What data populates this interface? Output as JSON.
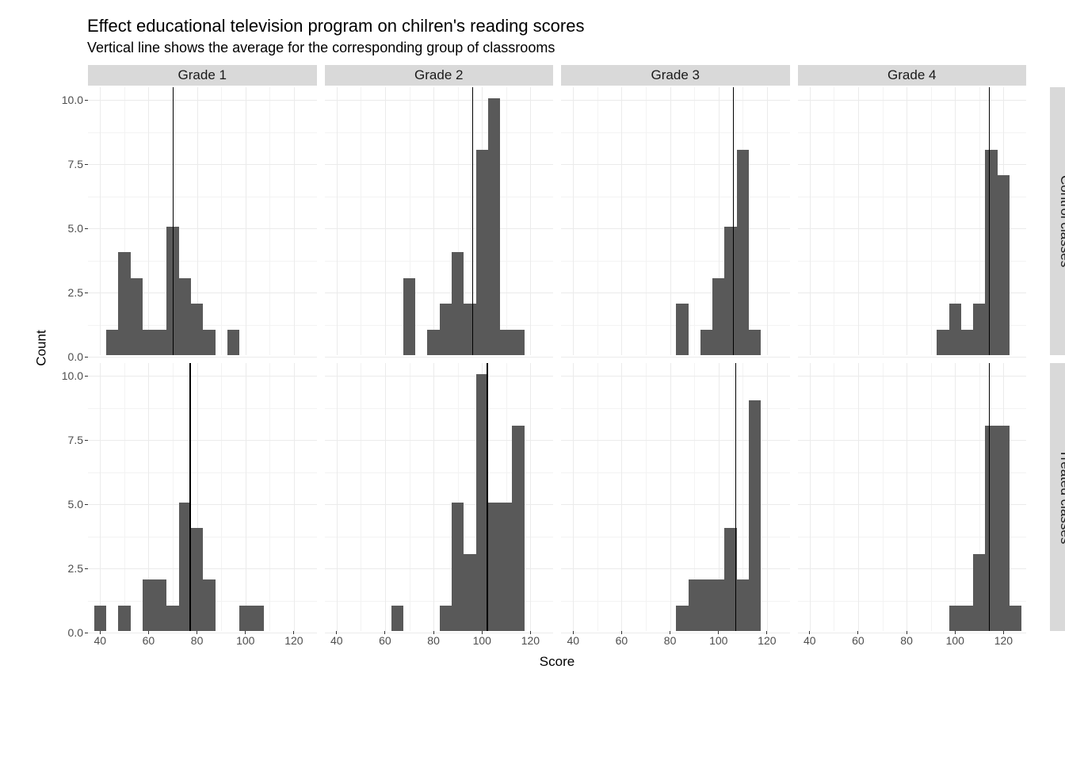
{
  "title": "Effect educational television program on chilren's reading scores",
  "subtitle": "Vertical line shows the average for the corresponding group of classrooms",
  "axis": {
    "x_label": "Score",
    "y_label": "Count",
    "xlim": [
      35,
      130
    ],
    "ylim": [
      0,
      10.5
    ],
    "x_ticks": [
      40,
      60,
      80,
      100,
      120
    ],
    "y_ticks": [
      0.0,
      2.5,
      5.0,
      7.5,
      10.0
    ],
    "y_tick_labels": [
      "0.0",
      "2.5",
      "5.0",
      "7.5",
      "10.0"
    ],
    "x_minor_step": 10,
    "y_minor_step": 1.25,
    "grid_major_color": "#ebebeb",
    "grid_minor_color": "#f3f3f3"
  },
  "layout": {
    "panel_gap": 8,
    "strip_height": 28,
    "strip_width": 28,
    "left_margin": 90,
    "cols": [
      "Grade 1",
      "Grade 2",
      "Grade 3",
      "Grade 4"
    ],
    "rows": [
      "Control classes",
      "Treated classes"
    ],
    "panel_bg": "#ffffff",
    "strip_bg": "#d9d9d9",
    "bar_color": "#595959",
    "vline_color": "#000000",
    "bin_width": 5
  },
  "panels": [
    {
      "col": 0,
      "row": 0,
      "vline": 70,
      "bars": [
        [
          45,
          1
        ],
        [
          50,
          4
        ],
        [
          55,
          3
        ],
        [
          60,
          1
        ],
        [
          65,
          1
        ],
        [
          70,
          5
        ],
        [
          75,
          3
        ],
        [
          80,
          2
        ],
        [
          85,
          1
        ],
        [
          95,
          1
        ]
      ]
    },
    {
      "col": 1,
      "row": 0,
      "vline": 96,
      "bars": [
        [
          70,
          3
        ],
        [
          80,
          1
        ],
        [
          85,
          2
        ],
        [
          90,
          4
        ],
        [
          95,
          2
        ],
        [
          100,
          8
        ],
        [
          105,
          10
        ],
        [
          110,
          1
        ],
        [
          115,
          1
        ]
      ]
    },
    {
      "col": 2,
      "row": 0,
      "vline": 106,
      "bars": [
        [
          85,
          2
        ],
        [
          95,
          1
        ],
        [
          100,
          3
        ],
        [
          105,
          5
        ],
        [
          110,
          8
        ],
        [
          115,
          1
        ]
      ]
    },
    {
      "col": 3,
      "row": 0,
      "vline": 114,
      "bars": [
        [
          95,
          1
        ],
        [
          100,
          2
        ],
        [
          105,
          1
        ],
        [
          110,
          2
        ],
        [
          115,
          8
        ],
        [
          120,
          7
        ]
      ]
    },
    {
      "col": 0,
      "row": 1,
      "vline": 77,
      "bars": [
        [
          40,
          1
        ],
        [
          50,
          1
        ],
        [
          60,
          2
        ],
        [
          65,
          2
        ],
        [
          70,
          1
        ],
        [
          75,
          5
        ],
        [
          80,
          4
        ],
        [
          85,
          2
        ],
        [
          100,
          1
        ],
        [
          105,
          1
        ]
      ]
    },
    {
      "col": 1,
      "row": 1,
      "vline": 102,
      "bars": [
        [
          65,
          1
        ],
        [
          85,
          1
        ],
        [
          90,
          5
        ],
        [
          95,
          3
        ],
        [
          100,
          10
        ],
        [
          105,
          5
        ],
        [
          110,
          5
        ],
        [
          115,
          8
        ]
      ]
    },
    {
      "col": 2,
      "row": 1,
      "vline": 107,
      "bars": [
        [
          85,
          1
        ],
        [
          90,
          2
        ],
        [
          95,
          2
        ],
        [
          100,
          2
        ],
        [
          105,
          4
        ],
        [
          110,
          2
        ],
        [
          115,
          9
        ]
      ]
    },
    {
      "col": 3,
      "row": 1,
      "vline": 114,
      "bars": [
        [
          100,
          1
        ],
        [
          105,
          1
        ],
        [
          110,
          3
        ],
        [
          115,
          8
        ],
        [
          120,
          8
        ],
        [
          125,
          1
        ]
      ]
    }
  ],
  "fonts": {
    "title_size": 22,
    "subtitle_size": 18,
    "strip_size": 17,
    "tick_size": 14,
    "axis_title_size": 17
  }
}
